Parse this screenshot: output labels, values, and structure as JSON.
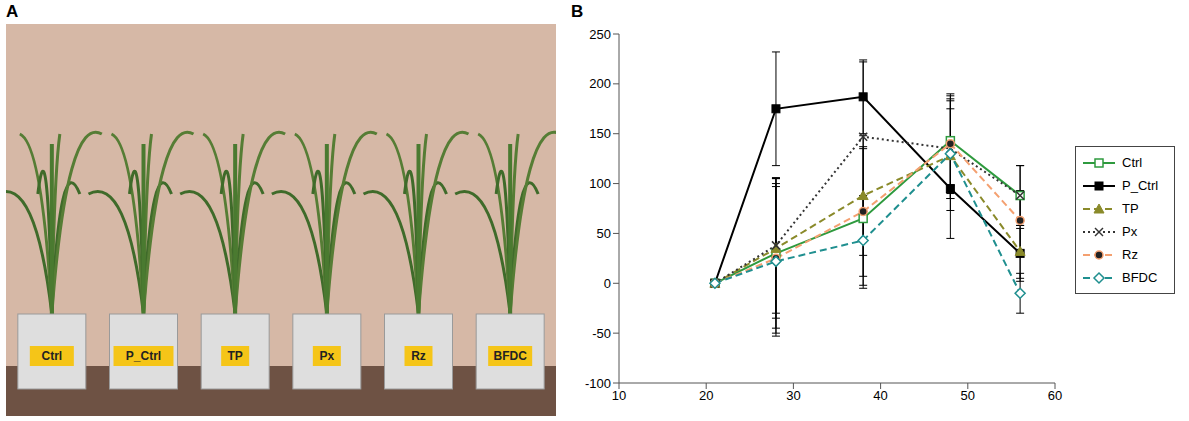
{
  "chart_data": {
    "type": "line",
    "panel_label": "B",
    "x": [
      21,
      28,
      38,
      48,
      56
    ],
    "xlim": [
      10,
      60
    ],
    "xticks": [
      10,
      20,
      30,
      40,
      50,
      60
    ],
    "ylim": [
      -100,
      250
    ],
    "yticks": [
      -100,
      -50,
      0,
      50,
      100,
      150,
      200,
      250
    ],
    "grid": false,
    "legend": "right",
    "series": [
      {
        "name": "Ctrl",
        "color": "#2e9a3e",
        "line_style": "solid",
        "marker": "square_open",
        "values": [
          0,
          30,
          65,
          143,
          88
        ],
        "errors": [
          0,
          75,
          70,
          45,
          30
        ]
      },
      {
        "name": "P_Ctrl",
        "color": "#000000",
        "line_style": "solid",
        "marker": "square",
        "values": [
          0,
          175,
          187,
          95,
          30
        ],
        "errors": [
          0,
          57,
          37,
          50,
          25
        ]
      },
      {
        "name": "TP",
        "color": "#8a8a2a",
        "line_style": "dashed",
        "marker": "triangle",
        "values": [
          0,
          35,
          88,
          128,
          32
        ],
        "errors": [
          0,
          70,
          60,
          55,
          30
        ]
      },
      {
        "name": "Px",
        "color": "#333333",
        "line_style": "dotted",
        "marker": "x",
        "values": [
          0,
          38,
          147,
          135,
          88
        ],
        "errors": [
          0,
          68,
          75,
          50,
          30
        ]
      },
      {
        "name": "Rz",
        "color": "#f4a070",
        "line_style": "dashed",
        "marker": "circle",
        "values": [
          0,
          25,
          72,
          140,
          63
        ],
        "errors": [
          0,
          75,
          65,
          50,
          30
        ]
      },
      {
        "name": "BFDC",
        "color": "#1f8f8f",
        "line_style": "dashed",
        "marker": "diamond_open",
        "values": [
          0,
          22,
          43,
          130,
          -10
        ],
        "errors": [
          0,
          75,
          45,
          45,
          20
        ]
      }
    ]
  },
  "photo": {
    "panel_label": "A",
    "labels": [
      "Ctrl",
      "P_Ctrl",
      "TP",
      "Px",
      "Rz",
      "BFDC"
    ]
  }
}
